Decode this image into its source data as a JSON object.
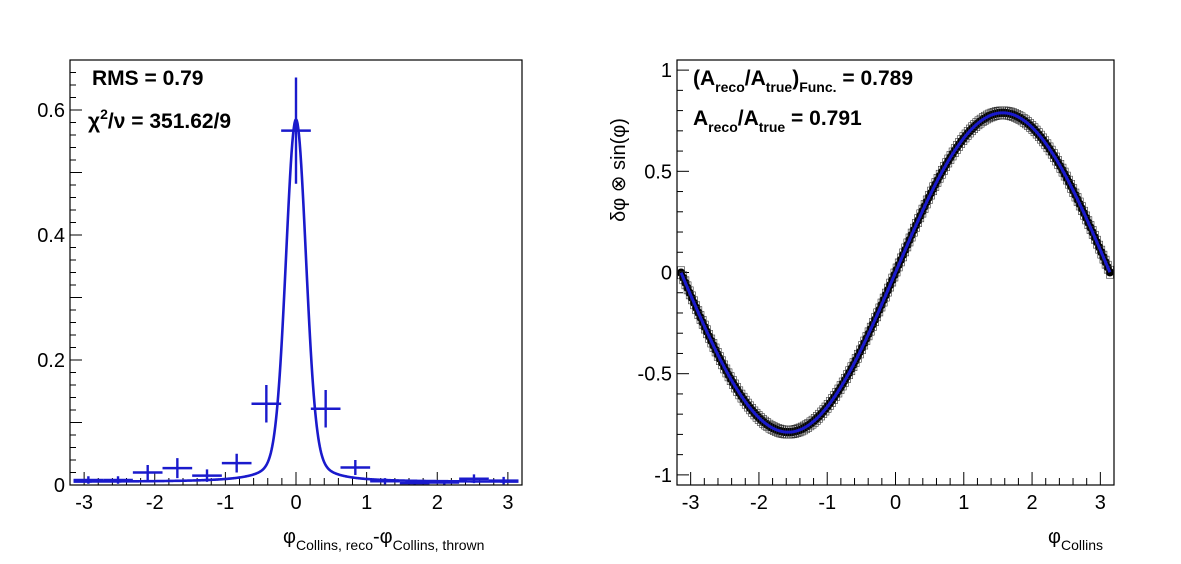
{
  "chart_data": [
    {
      "type": "scatter",
      "xlabel": {
        "base": "φ",
        "sub1": "Collins, reco",
        "mid": "-φ",
        "sub2": "Collins, thrown"
      },
      "ylabel": "",
      "xlim": [
        -3.2,
        3.2
      ],
      "ylim": [
        0,
        0.68
      ],
      "x_ticks": [
        -3,
        -2,
        -1,
        0,
        1,
        2,
        3
      ],
      "x_tick_labels": [
        "-3",
        "-2",
        "-1",
        "0",
        "1",
        "2",
        "3"
      ],
      "y_ticks": [
        0,
        0.2,
        0.4,
        0.6
      ],
      "y_tick_labels": [
        "0",
        "0.2",
        "0.4",
        "0.6"
      ],
      "annotations": {
        "rms": "RMS = 0.79",
        "chi2": {
          "chi": "χ",
          "sup": "2",
          "rest": "/ν = 351.62/9"
        }
      },
      "series": [
        {
          "kind": "histogram-points",
          "color": "#1a1acc",
          "bin_width": 0.42,
          "x": [
            -2.94,
            -2.52,
            -2.1,
            -1.68,
            -1.26,
            -0.84,
            -0.42,
            0.0,
            0.42,
            0.84,
            1.26,
            1.68,
            2.1,
            2.52,
            2.94
          ],
          "y": [
            0.008,
            0.008,
            0.02,
            0.027,
            0.015,
            0.035,
            0.13,
            0.567,
            0.122,
            0.028,
            0.006,
            0.003,
            0.004,
            0.01,
            0.007
          ],
          "yerr": [
            0.006,
            0.006,
            0.012,
            0.016,
            0.01,
            0.015,
            0.03,
            0.085,
            0.03,
            0.012,
            0.005,
            0.003,
            0.004,
            0.007,
            0.006
          ]
        },
        {
          "kind": "fit-curve",
          "color": "#1a1acc",
          "model": "gauss+breit-wigner",
          "params": {
            "A1": 0.48,
            "s1": 0.14,
            "A2": 0.1,
            "g2": 0.22,
            "c": 0.005
          }
        }
      ]
    },
    {
      "type": "scatter",
      "xlabel": {
        "base": "φ",
        "sub1": "Collins"
      },
      "ylabel": "δφ ⊗ sin(φ)",
      "xlim": [
        -3.2,
        3.2
      ],
      "ylim": [
        -1.05,
        1.05
      ],
      "x_ticks": [
        -3,
        -2,
        -1,
        0,
        1,
        2,
        3
      ],
      "x_tick_labels": [
        "-3",
        "-2",
        "-1",
        "0",
        "1",
        "2",
        "3"
      ],
      "y_ticks": [
        -1,
        -0.5,
        0,
        0.5,
        1
      ],
      "y_tick_labels": [
        "-1",
        "-0.5",
        "0",
        "0.5",
        "1"
      ],
      "annotations": {
        "line1": {
          "open": "(A",
          "sub_a": "reco",
          "slash": "/A",
          "sub_b": "true",
          "close": ")",
          "sub_c": "Func.",
          "val": " = 0.789"
        },
        "line2": {
          "a": "A",
          "sub_a": "reco",
          "slash": "/A",
          "sub_b": "true",
          "val": " = 0.791"
        }
      },
      "series": [
        {
          "kind": "dense-points",
          "color": "#000000",
          "function": "0.789*sin(x)",
          "xrange": [
            -3.14,
            3.14
          ],
          "n": 200
        },
        {
          "kind": "fit-curve",
          "color": "#1a1acc",
          "function": "0.789*sin(x)",
          "xrange": [
            -3.14,
            3.14
          ]
        }
      ]
    }
  ]
}
